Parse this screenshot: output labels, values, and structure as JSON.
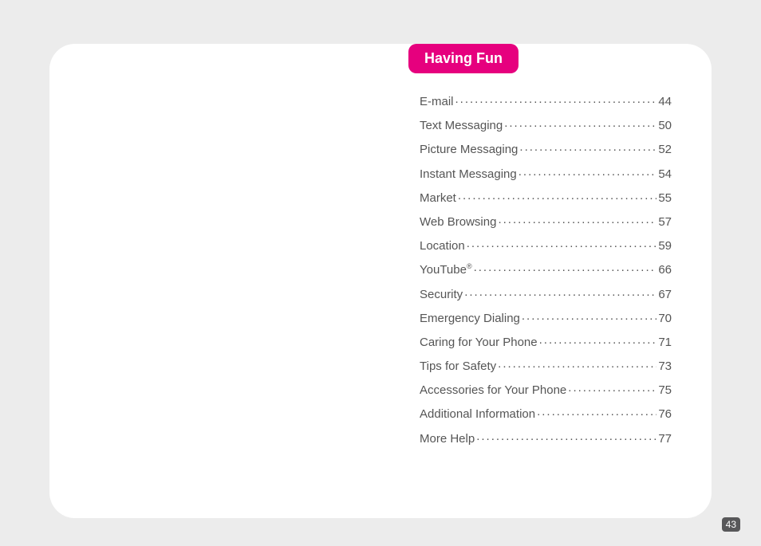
{
  "section": {
    "title": "Having Fun",
    "tab_bg": "#e6007e",
    "tab_fg": "#ffffff"
  },
  "page_number": "43",
  "page_bg": "#ffffff",
  "body_bg": "#ececec",
  "text_color": "#555555",
  "page_badge_bg": "#58585a",
  "toc": [
    {
      "label": "E-mail",
      "page": "44"
    },
    {
      "label": "Text Messaging",
      "page": "50"
    },
    {
      "label": "Picture Messaging",
      "page": "52"
    },
    {
      "label": "Instant Messaging",
      "page": "54"
    },
    {
      "label": "Market",
      "page": "55"
    },
    {
      "label": "Web Browsing",
      "page": "57"
    },
    {
      "label": "Location",
      "page": "59"
    },
    {
      "label": "YouTube",
      "sup": "®",
      "page": "66"
    },
    {
      "label": "Security",
      "page": "67"
    },
    {
      "label": "Emergency Dialing",
      "page": "70"
    },
    {
      "label": "Caring for Your Phone",
      "page": "71"
    },
    {
      "label": "Tips for Safety",
      "page": "73"
    },
    {
      "label": "Accessories for Your Phone",
      "page": "75"
    },
    {
      "label": "Additional Information",
      "page": "76"
    },
    {
      "label": "More Help",
      "page": "77"
    }
  ]
}
